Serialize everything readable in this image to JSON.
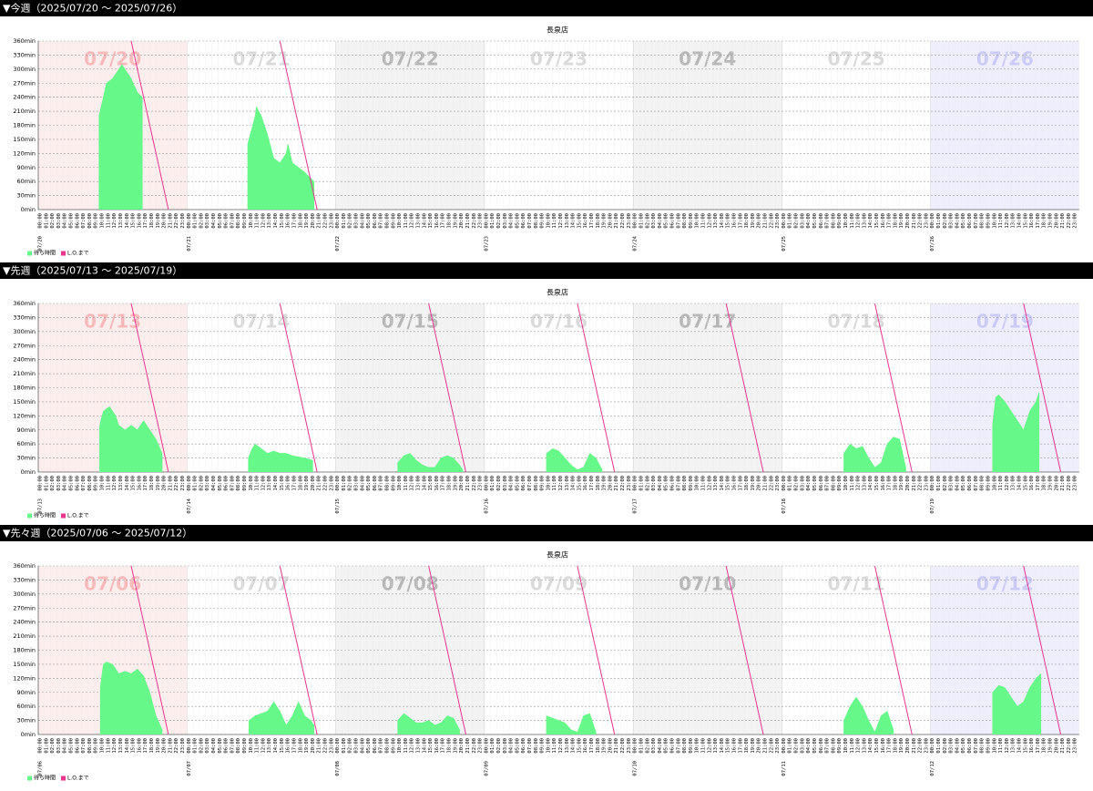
{
  "hours": [
    "00:00",
    "01:00",
    "02:00",
    "03:00",
    "04:00",
    "05:00",
    "06:00",
    "07:00",
    "08:00",
    "09:00",
    "10:00",
    "11:00",
    "12:00",
    "13:00",
    "14:00",
    "15:00",
    "16:00",
    "17:00",
    "18:00",
    "19:00",
    "20:00",
    "21:00",
    "22:00",
    "23:00"
  ],
  "chart_data": [
    {
      "heading": "▼今週（2025/07/20 〜 2025/07/26）",
      "type": "area",
      "title": "長泉店",
      "days": [
        "07/20",
        "07/21",
        "07/22",
        "07/23",
        "07/24",
        "07/25",
        "07/26"
      ],
      "xlim": [
        0,
        168
      ],
      "ylim": [
        0,
        360
      ],
      "yticks": [
        {
          "value": 0,
          "label": "0min"
        },
        {
          "value": 30,
          "label": "30min"
        },
        {
          "value": 60,
          "label": "60min"
        },
        {
          "value": 90,
          "label": "90min"
        },
        {
          "value": 120,
          "label": "120min"
        },
        {
          "value": 150,
          "label": "150min"
        },
        {
          "value": 180,
          "label": "180min"
        },
        {
          "value": 210,
          "label": "210min"
        },
        {
          "value": 240,
          "label": "240min"
        },
        {
          "value": 270,
          "label": "270min"
        },
        {
          "value": 300,
          "label": "300min"
        },
        {
          "value": 330,
          "label": "330min"
        },
        {
          "value": 360,
          "label": "360min"
        }
      ],
      "series": [
        {
          "name": "待ち時間",
          "type": "area",
          "color": "#66f888",
          "x": [
            9.8,
            10.5,
            11,
            12,
            13,
            13.5,
            14,
            15,
            16,
            16.8,
            null,
            33.8,
            35,
            35.2,
            36,
            37,
            38,
            39,
            40,
            40.3,
            41,
            42,
            43,
            44.5
          ],
          "values": [
            200,
            240,
            270,
            280,
            300,
            310,
            300,
            280,
            250,
            240,
            null,
            140,
            200,
            220,
            200,
            160,
            110,
            100,
            120,
            140,
            100,
            90,
            80,
            60
          ]
        },
        {
          "name": "L.O.まで",
          "type": "line",
          "color": "#e8338f",
          "x": [
            15,
            21,
            null,
            39,
            45
          ],
          "values": [
            360,
            0,
            null,
            360,
            0
          ]
        }
      ]
    },
    {
      "heading": "▼先週（2025/07/13 〜 2025/07/19）",
      "type": "area",
      "title": "長泉店",
      "days": [
        "07/13",
        "07/14",
        "07/15",
        "07/16",
        "07/17",
        "07/18",
        "07/19"
      ],
      "xlim": [
        0,
        168
      ],
      "ylim": [
        0,
        360
      ],
      "yticks": [
        {
          "value": 0,
          "label": "0min"
        },
        {
          "value": 30,
          "label": "30min"
        },
        {
          "value": 60,
          "label": "60min"
        },
        {
          "value": 90,
          "label": "90min"
        },
        {
          "value": 120,
          "label": "120min"
        },
        {
          "value": 150,
          "label": "150min"
        },
        {
          "value": 180,
          "label": "180min"
        },
        {
          "value": 210,
          "label": "210min"
        },
        {
          "value": 240,
          "label": "240min"
        },
        {
          "value": 270,
          "label": "270min"
        },
        {
          "value": 300,
          "label": "300min"
        },
        {
          "value": 330,
          "label": "330min"
        },
        {
          "value": 360,
          "label": "360min"
        }
      ],
      "series": [
        {
          "name": "待ち時間",
          "type": "area",
          "color": "#66f888",
          "x": [
            9.9,
            10.5,
            11.5,
            12.5,
            13,
            14,
            15,
            16,
            17,
            18,
            19,
            20,
            null,
            33.9,
            34.5,
            35,
            36,
            37,
            38,
            39,
            40,
            41,
            43,
            44.3,
            null,
            58,
            59,
            60,
            61,
            62,
            63,
            64,
            65,
            66,
            67,
            68,
            68.5,
            null,
            82,
            83,
            84,
            85,
            86,
            87,
            88,
            89,
            90,
            91,
            null,
            130,
            131,
            132,
            133,
            134,
            135,
            136,
            137,
            138,
            139,
            140,
            null,
            154,
            154.5,
            155,
            156,
            157,
            158,
            159,
            160,
            161,
            161.5
          ],
          "values": [
            100,
            130,
            140,
            120,
            100,
            90,
            100,
            90,
            110,
            90,
            70,
            40,
            null,
            30,
            50,
            60,
            50,
            40,
            45,
            40,
            40,
            35,
            30,
            25,
            null,
            20,
            35,
            40,
            25,
            15,
            10,
            10,
            30,
            35,
            30,
            15,
            5,
            null,
            40,
            50,
            45,
            30,
            15,
            5,
            10,
            40,
            30,
            5,
            null,
            40,
            60,
            50,
            55,
            30,
            10,
            20,
            60,
            75,
            70,
            10,
            null,
            100,
            160,
            165,
            150,
            130,
            110,
            90,
            130,
            150,
            170
          ]
        },
        {
          "name": "L.O.まで",
          "type": "line",
          "color": "#e8338f",
          "x": [
            15,
            21,
            null,
            39,
            45,
            null,
            63,
            69,
            null,
            87,
            93,
            null,
            111,
            117,
            null,
            135,
            141,
            null,
            159,
            165
          ],
          "values": [
            360,
            0,
            null,
            360,
            0,
            null,
            360,
            0,
            null,
            360,
            0,
            null,
            360,
            0,
            null,
            360,
            0,
            null,
            360,
            0
          ]
        }
      ]
    },
    {
      "heading": "▼先々週（2025/07/06 〜 2025/07/12）",
      "type": "area",
      "title": "長泉店",
      "days": [
        "07/06",
        "07/07",
        "07/08",
        "07/09",
        "07/10",
        "07/11",
        "07/12"
      ],
      "xlim": [
        0,
        168
      ],
      "ylim": [
        0,
        360
      ],
      "yticks": [
        {
          "value": 0,
          "label": "0min"
        },
        {
          "value": 30,
          "label": "30min"
        },
        {
          "value": 60,
          "label": "60min"
        },
        {
          "value": 90,
          "label": "90min"
        },
        {
          "value": 120,
          "label": "120min"
        },
        {
          "value": 150,
          "label": "150min"
        },
        {
          "value": 180,
          "label": "180min"
        },
        {
          "value": 210,
          "label": "210min"
        },
        {
          "value": 240,
          "label": "240min"
        },
        {
          "value": 270,
          "label": "270min"
        },
        {
          "value": 300,
          "label": "300min"
        },
        {
          "value": 330,
          "label": "330min"
        },
        {
          "value": 360,
          "label": "360min"
        }
      ],
      "series": [
        {
          "name": "待ち時間",
          "type": "area",
          "color": "#66f888",
          "x": [
            10,
            10.5,
            11,
            12,
            13,
            14,
            15,
            16,
            17,
            18,
            19,
            20,
            null,
            34,
            35,
            36,
            37,
            38,
            39,
            40,
            41,
            42,
            43,
            44,
            44.5,
            null,
            58,
            59,
            60,
            61,
            62,
            63,
            64,
            65,
            66,
            67,
            68,
            null,
            82,
            83,
            84,
            85,
            86,
            87,
            88,
            89,
            90,
            null,
            130,
            131,
            132,
            133,
            134,
            135,
            136,
            137,
            138,
            null,
            154,
            155,
            156,
            157,
            158,
            159,
            160,
            161,
            161.8
          ],
          "values": [
            100,
            150,
            155,
            150,
            130,
            135,
            130,
            140,
            125,
            90,
            40,
            10,
            null,
            30,
            40,
            45,
            50,
            70,
            50,
            20,
            40,
            70,
            40,
            30,
            20,
            null,
            30,
            45,
            35,
            25,
            25,
            30,
            20,
            25,
            40,
            35,
            10,
            null,
            40,
            35,
            30,
            25,
            10,
            5,
            40,
            45,
            5,
            null,
            30,
            60,
            80,
            60,
            30,
            5,
            40,
            50,
            10,
            null,
            90,
            105,
            100,
            80,
            60,
            70,
            100,
            120,
            130
          ]
        },
        {
          "name": "L.O.まで",
          "type": "line",
          "color": "#e8338f",
          "x": [
            15,
            21,
            null,
            39,
            45,
            null,
            63,
            69,
            null,
            87,
            93,
            null,
            111,
            117,
            null,
            135,
            141,
            null,
            159,
            165
          ],
          "values": [
            360,
            0,
            null,
            360,
            0,
            null,
            360,
            0,
            null,
            360,
            0,
            null,
            360,
            0,
            null,
            360,
            0,
            null,
            360,
            0
          ]
        }
      ]
    }
  ]
}
